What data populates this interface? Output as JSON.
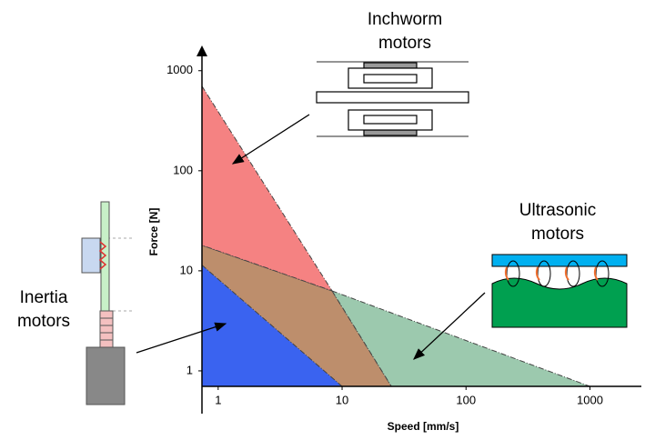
{
  "chart_data": {
    "type": "region",
    "x_label": "Speed [mm/s]",
    "y_label": "Force [N]",
    "log_x": true,
    "log_y": true,
    "xlim": [
      0.74,
      2600
    ],
    "ylim": [
      0.7,
      1450
    ],
    "xticks": [
      1,
      10,
      100,
      1000
    ],
    "yticks": [
      1,
      10,
      100,
      1000
    ],
    "regions": [
      {
        "color": "#bd8e6c",
        "x": [
          0.74,
          8.3,
          25,
          0.74
        ],
        "y": [
          18,
          6.3,
          0.7,
          0.7
        ]
      },
      {
        "color": "#f58282",
        "x": [
          0.74,
          8.3,
          0.74
        ],
        "y": [
          700,
          6.3,
          18
        ]
      },
      {
        "color": "#9cc9ae",
        "x": [
          8.3,
          1000,
          25
        ],
        "y": [
          6.3,
          0.7,
          0.7
        ]
      },
      {
        "color": "#3a63f0",
        "x": [
          0.74,
          10,
          0.74
        ],
        "y": [
          11.4,
          0.7,
          0.7
        ]
      }
    ],
    "annotations": [
      {
        "lines": [
          "Inchworm",
          "motors"
        ]
      },
      {
        "lines": [
          "Ultrasonic",
          "motors"
        ]
      },
      {
        "lines": [
          "Inertia",
          "motors"
        ]
      }
    ]
  }
}
